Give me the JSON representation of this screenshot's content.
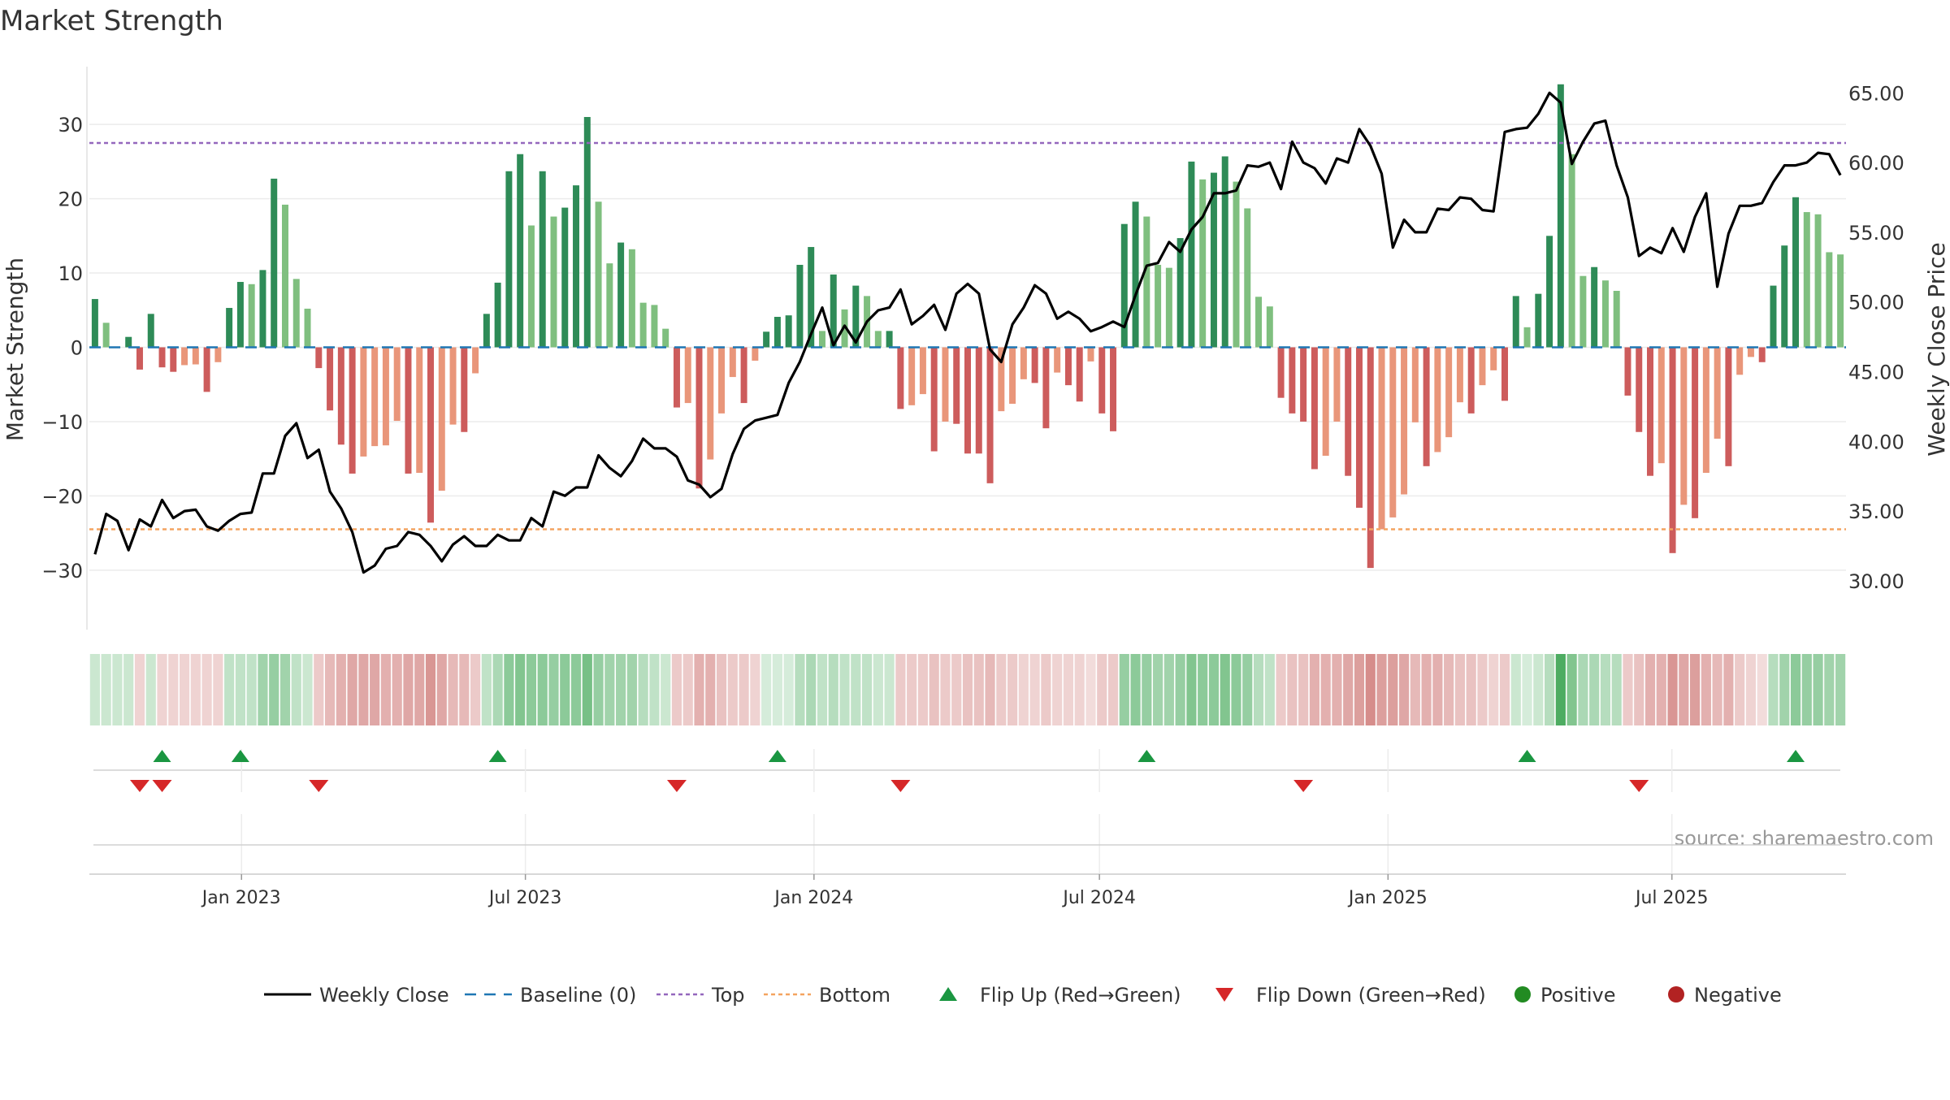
{
  "chart_data": {
    "type": "bar",
    "title": "Market Strength",
    "ylabel_left": "Market Strength",
    "ylabel_right": "Weekly Close Price",
    "source": "source: sharemaestro.com",
    "ylim_left": [
      -38,
      38
    ],
    "ylim_right": [
      26.5,
      67
    ],
    "yticks_left": [
      "−30",
      "−20",
      "−10",
      "0",
      "10",
      "20",
      "30"
    ],
    "yticks_left_values": [
      -30,
      -20,
      -10,
      0,
      10,
      20,
      30
    ],
    "yticks_right": [
      "30.00",
      "35.00",
      "40.00",
      "45.00",
      "50.00",
      "55.00",
      "60.00",
      "65.00"
    ],
    "yticks_right_values": [
      30,
      35,
      40,
      45,
      50,
      55,
      60,
      65
    ],
    "x_start": "2022-09-26",
    "x_end": "2025-10-20",
    "x_ticks": [
      {
        "date": "2023-01-01",
        "label": "Jan 2023"
      },
      {
        "date": "2023-07-01",
        "label": "Jul 2023"
      },
      {
        "date": "2024-01-01",
        "label": "Jan 2024"
      },
      {
        "date": "2024-07-01",
        "label": "Jul 2024"
      },
      {
        "date": "2025-01-01",
        "label": "Jan 2025"
      },
      {
        "date": "2025-07-01",
        "label": "Jul 2025"
      }
    ],
    "top_level": 27.5,
    "bottom_level": -24.5,
    "strength": [
      6.5,
      3.3,
      0,
      1.4,
      -3,
      4.5,
      -2.7,
      -3.3,
      -2.4,
      -2.3,
      -6,
      -2,
      5.3,
      8.8,
      8.5,
      10.4,
      22.7,
      19.2,
      9.2,
      5.2,
      -2.8,
      -8.5,
      -13.1,
      -17,
      -14.7,
      -13.3,
      -13.2,
      -9.9,
      -17,
      -16.9,
      -23.6,
      -19.3,
      -10.4,
      -11.4,
      -3.5,
      4.5,
      8.7,
      23.7,
      26,
      16.4,
      23.7,
      17.6,
      18.8,
      21.8,
      31,
      19.6,
      11.3,
      14.1,
      13.2,
      6,
      5.7,
      2.5,
      -8.1,
      -7.5,
      -19,
      -15.1,
      -8.9,
      -4,
      -7.5,
      -1.8,
      2.1,
      4.1,
      4.3,
      11.1,
      13.5,
      2.2,
      9.8,
      5.1,
      8.3,
      6.9,
      2.2,
      2.2,
      -8.3,
      -7.8,
      -6.3,
      -14,
      -10,
      -10.3,
      -14.3,
      -14.3,
      -18.3,
      -8.6,
      -7.6,
      -4.3,
      -4.8,
      -10.9,
      -3.4,
      -5.1,
      -7.3,
      -1.9,
      -8.9,
      -11.3,
      16.6,
      19.6,
      17.6,
      11.1,
      10.7,
      14.7,
      25,
      22.6,
      23.5,
      25.7,
      22.3,
      18.7,
      6.8,
      5.5,
      -6.8,
      -8.9,
      -10,
      -16.4,
      -14.6,
      -10,
      -17.3,
      -21.6,
      -29.7,
      -24.5,
      -22.9,
      -19.8,
      -10.1,
      -16,
      -14.1,
      -12.1,
      -7.4,
      -8.9,
      -5.1,
      -3.1,
      -7.2,
      6.9,
      2.7,
      7.2,
      15,
      35.4,
      26,
      9.6,
      10.8,
      9,
      7.6,
      -6.5,
      -11.4,
      -17.3,
      -15.6,
      -27.7,
      -21.2,
      -23,
      -16.9,
      -12.3,
      -16,
      -3.7,
      -1.3,
      -2,
      8.3,
      13.7,
      20.2,
      18.2,
      17.9,
      12.8,
      12.5
    ],
    "weekly_close": [
      31.9,
      34.8,
      34.3,
      32.2,
      34.4,
      33.9,
      35.8,
      34.5,
      35,
      35.1,
      33.9,
      33.6,
      34.3,
      34.8,
      34.9,
      37.7,
      37.7,
      40.4,
      41.3,
      38.8,
      39.4,
      36.4,
      35.2,
      33.5,
      30.6,
      31.1,
      32.3,
      32.5,
      33.5,
      33.3,
      32.5,
      31.4,
      32.6,
      33.2,
      32.5,
      32.5,
      33.3,
      32.9,
      32.9,
      34.5,
      33.9,
      36.4,
      36.1,
      36.7,
      36.7,
      39,
      38.1,
      37.5,
      38.6,
      40.2,
      39.5,
      39.5,
      38.9,
      37.2,
      36.9,
      36,
      36.6,
      39.1,
      40.9,
      41.5,
      41.7,
      41.9,
      44.2,
      45.7,
      47.7,
      49.6,
      46.9,
      48.3,
      47.1,
      48.6,
      49.4,
      49.6,
      50.9,
      48.4,
      49,
      49.8,
      48,
      50.6,
      51.3,
      50.6,
      46.6,
      45.7,
      48.4,
      49.6,
      51.2,
      50.6,
      48.8,
      49.3,
      48.8,
      47.9,
      48.2,
      48.6,
      48.2,
      50.5,
      52.6,
      52.8,
      54.3,
      53.6,
      55.2,
      56.1,
      57.8,
      57.8,
      58,
      59.8,
      59.7,
      60,
      58.1,
      61.5,
      60,
      59.6,
      58.5,
      60.3,
      60,
      62.4,
      61.2,
      59.2,
      53.9,
      55.9,
      55,
      55,
      56.7,
      56.6,
      57.5,
      57.4,
      56.6,
      56.5,
      62.2,
      62.4,
      62.5,
      63.5,
      65,
      64.3,
      59.9,
      61.5,
      62.8,
      63,
      59.8,
      57.5,
      53.3,
      53.9,
      53.5,
      55.3,
      53.6,
      56.1,
      57.8,
      51.1,
      54.9,
      56.9,
      56.9,
      57.1,
      58.6,
      59.8,
      59.8,
      60,
      60.7,
      60.6,
      59.1
    ],
    "band_shades": [
      0.25,
      0.25,
      0.25,
      0.25,
      0.25,
      0.25,
      0.25,
      0.25,
      0.25,
      0.25,
      0.25,
      0.25,
      0.3,
      0.3,
      0.3,
      0.45,
      0.5,
      0.45,
      0.3,
      0.25,
      0.3,
      0.4,
      0.45,
      0.5,
      0.5,
      0.5,
      0.45,
      0.45,
      0.5,
      0.5,
      0.6,
      0.5,
      0.4,
      0.4,
      0.3,
      0.3,
      0.4,
      0.55,
      0.6,
      0.55,
      0.55,
      0.5,
      0.55,
      0.55,
      0.65,
      0.5,
      0.45,
      0.45,
      0.45,
      0.35,
      0.3,
      0.25,
      0.3,
      0.3,
      0.45,
      0.45,
      0.35,
      0.3,
      0.3,
      0.25,
      0.2,
      0.2,
      0.2,
      0.35,
      0.4,
      0.3,
      0.35,
      0.3,
      0.3,
      0.3,
      0.25,
      0.25,
      0.3,
      0.3,
      0.3,
      0.35,
      0.3,
      0.3,
      0.35,
      0.35,
      0.4,
      0.3,
      0.3,
      0.25,
      0.25,
      0.3,
      0.25,
      0.25,
      0.25,
      0.2,
      0.3,
      0.3,
      0.5,
      0.55,
      0.5,
      0.45,
      0.45,
      0.5,
      0.6,
      0.55,
      0.55,
      0.6,
      0.55,
      0.5,
      0.35,
      0.3,
      0.3,
      0.35,
      0.35,
      0.45,
      0.45,
      0.45,
      0.5,
      0.55,
      0.65,
      0.55,
      0.55,
      0.5,
      0.4,
      0.45,
      0.45,
      0.4,
      0.35,
      0.35,
      0.3,
      0.25,
      0.3,
      0.25,
      0.2,
      0.25,
      0.35,
      0.85,
      0.6,
      0.4,
      0.4,
      0.35,
      0.35,
      0.3,
      0.35,
      0.45,
      0.45,
      0.6,
      0.5,
      0.55,
      0.45,
      0.4,
      0.45,
      0.3,
      0.25,
      0.2,
      0.35,
      0.45,
      0.55,
      0.5,
      0.5,
      0.45,
      0.45
    ],
    "flips_up": [
      6,
      13,
      36,
      61,
      94,
      128,
      152
    ],
    "flips_down": [
      4,
      6,
      20,
      52,
      72,
      108,
      138
    ],
    "colors": {
      "strong_green": "#2e8b57",
      "light_green": "#7fbf7f",
      "strong_red": "#cd5c5c",
      "light_red": "#e9967a",
      "band_green": "#2e9e45",
      "band_red": "#c0504d",
      "top_line": "#9467bd",
      "bottom_line": "#f4a460",
      "baseline": "#1f77b4",
      "flip_up": "#1a9641",
      "flip_down": "#d62728",
      "positive": "#228b22",
      "negative": "#b22222",
      "close_line": "#000000"
    },
    "legend": [
      {
        "label": "Weekly Close",
        "symbol": "line-solid"
      },
      {
        "label": "Baseline (0)",
        "symbol": "line-dash-blue"
      },
      {
        "label": "Top",
        "symbol": "line-dot-purple"
      },
      {
        "label": "Bottom",
        "symbol": "line-dot-orange"
      },
      {
        "label": "Flip Up (Red→Green)",
        "symbol": "triangle-up-green"
      },
      {
        "label": "Flip Down (Green→Red)",
        "symbol": "triangle-down-red"
      },
      {
        "label": "Positive",
        "symbol": "circle-green"
      },
      {
        "label": "Negative",
        "symbol": "circle-red"
      }
    ]
  }
}
